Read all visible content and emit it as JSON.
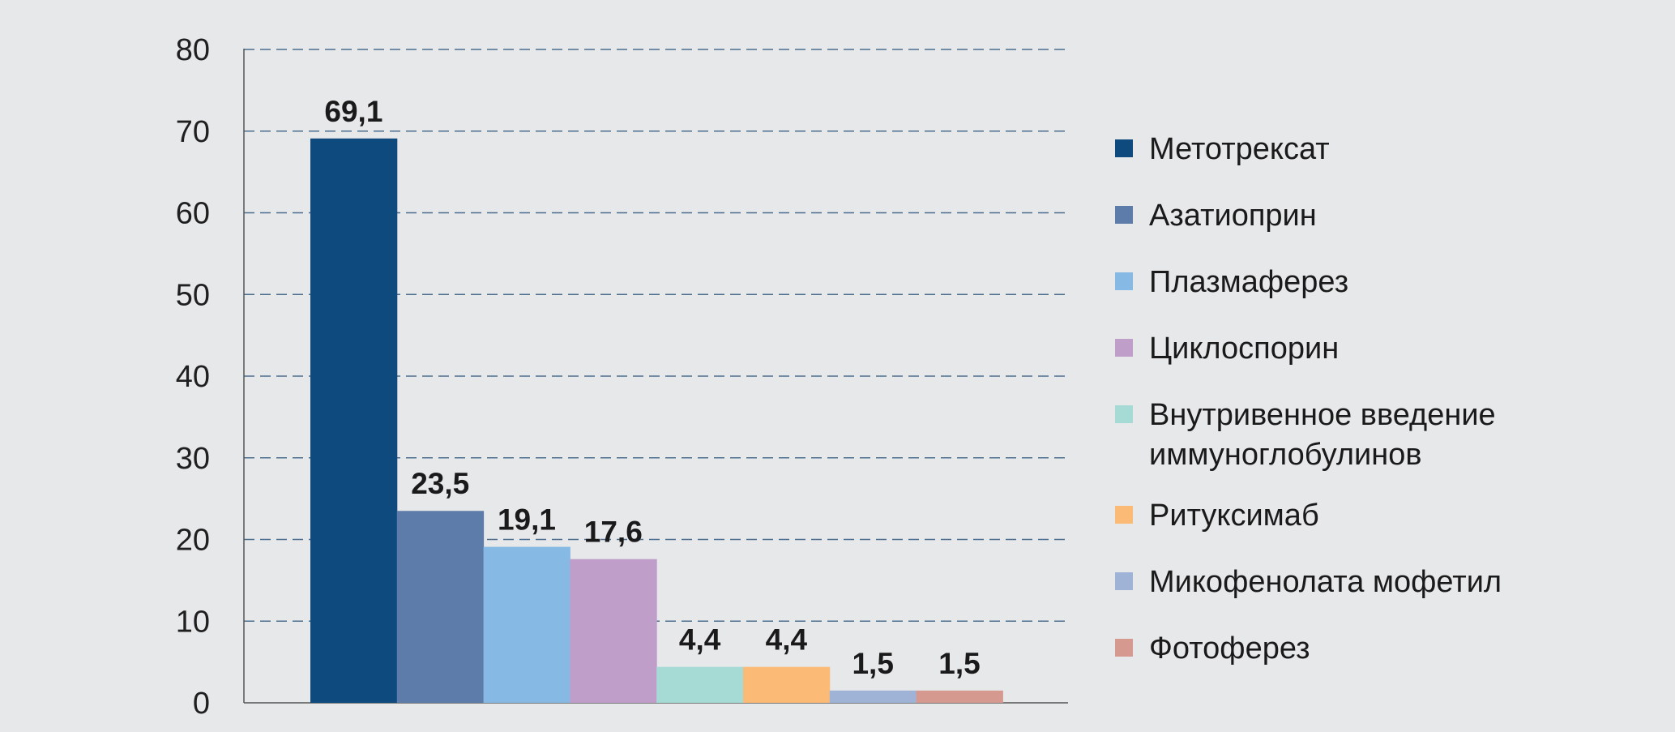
{
  "chart_data": {
    "type": "bar",
    "categories": [
      "Метотрексат",
      "Азатиоприн",
      "Плазмаферез",
      "Циклоспорин",
      "Внутривенное введение иммуноглобулинов",
      "Ритуксимаб",
      "Микофенолата мофетил",
      "Фотоферез"
    ],
    "values": [
      69.1,
      23.5,
      19.1,
      17.6,
      4.4,
      4.4,
      1.5,
      1.5
    ],
    "value_labels": [
      "69,1",
      "23,5",
      "19,1",
      "17,6",
      "4,4",
      "4,4",
      "1,5",
      "1,5"
    ],
    "colors": [
      "#0f4a7e",
      "#5e7ca9",
      "#86b9e3",
      "#bf9fca",
      "#a6dbd5",
      "#fbbb77",
      "#9eb3d6",
      "#d6998f"
    ],
    "legend": [
      {
        "lines": [
          "Метотрексат"
        ]
      },
      {
        "lines": [
          "Азатиоприн"
        ]
      },
      {
        "lines": [
          "Плазмаферез"
        ]
      },
      {
        "lines": [
          "Циклоспорин"
        ]
      },
      {
        "lines": [
          "Внутривенное введение",
          "иммуноглобулинов"
        ]
      },
      {
        "lines": [
          "Ритуксимаб"
        ]
      },
      {
        "lines": [
          "Микофенолата мофетил"
        ]
      },
      {
        "lines": [
          "Фотоферез"
        ]
      }
    ],
    "yticks": [
      "0",
      "10",
      "20",
      "30",
      "40",
      "50",
      "60",
      "70",
      "80"
    ],
    "ylim": [
      0,
      80
    ],
    "grid": true,
    "legend_position": "right",
    "title": "",
    "xlabel": "",
    "ylabel": ""
  }
}
